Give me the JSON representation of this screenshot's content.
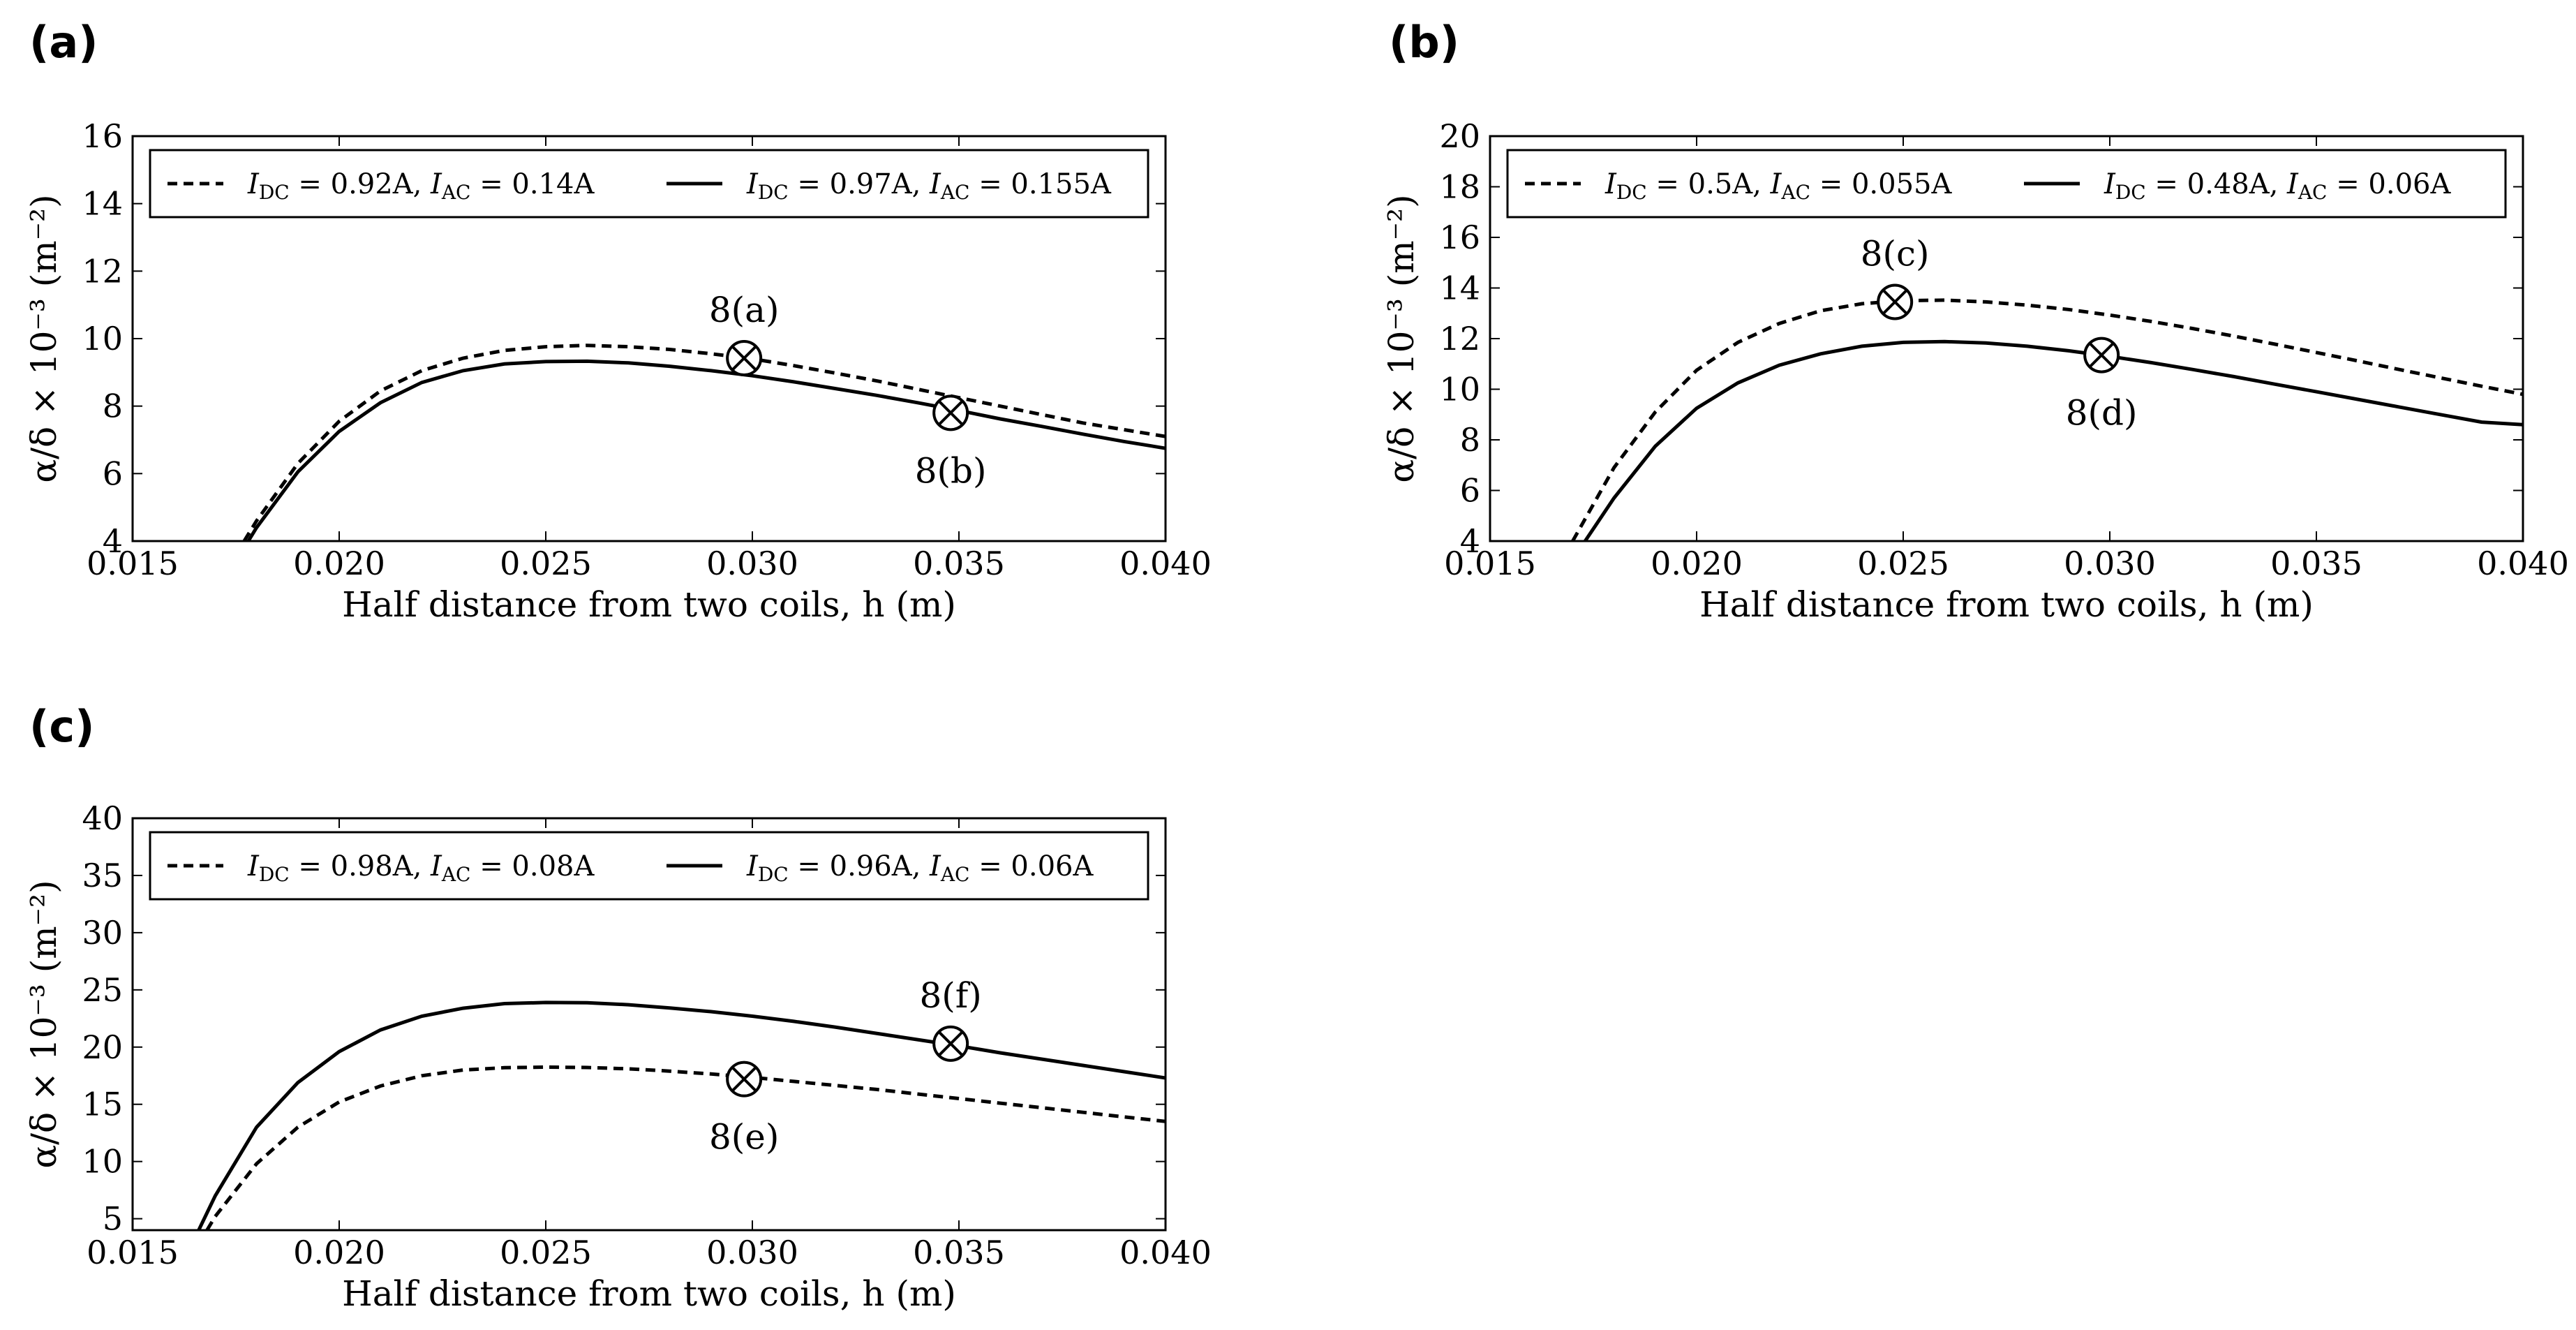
{
  "figure": {
    "panels": [
      {
        "label": "(a)"
      },
      {
        "label": "(b)"
      },
      {
        "label": "(c)"
      }
    ]
  },
  "chart_data": [
    {
      "panel": "(a)",
      "type": "line",
      "xlabel": "Half distance from two coils, h (m)",
      "ylabel": "α/δ × 10⁻³ (m⁻²)",
      "xlim": [
        0.015,
        0.04
      ],
      "ylim": [
        4,
        16
      ],
      "xticks": [
        0.015,
        0.02,
        0.025,
        0.03,
        0.035,
        0.04
      ],
      "xtick_labels": [
        "0.015",
        "0.020",
        "0.025",
        "0.030",
        "0.035",
        "0.040"
      ],
      "yticks": [
        4,
        6,
        8,
        10,
        12,
        14,
        16
      ],
      "ytick_labels": [
        "4",
        "6",
        "8",
        "10",
        "12",
        "14",
        "16"
      ],
      "legend_position": "top",
      "series": [
        {
          "name": "I_DC = 0.92A, I_AC = 0.14A",
          "label_parts": [
            "I",
            "DC",
            " = 0.92A, ",
            "I",
            "AC",
            " = 0.14A"
          ],
          "style": "dashed",
          "x": [
            0.0177,
            0.018,
            0.019,
            0.02,
            0.021,
            0.022,
            0.023,
            0.024,
            0.025,
            0.026,
            0.027,
            0.028,
            0.029,
            0.03,
            0.031,
            0.032,
            0.033,
            0.034,
            0.035,
            0.036,
            0.037,
            0.038,
            0.039,
            0.04
          ],
          "y": [
            4.0,
            4.6,
            6.3,
            7.55,
            8.45,
            9.05,
            9.42,
            9.65,
            9.76,
            9.8,
            9.76,
            9.68,
            9.55,
            9.4,
            9.2,
            8.98,
            8.75,
            8.5,
            8.25,
            8.0,
            7.75,
            7.5,
            7.3,
            7.1
          ]
        },
        {
          "name": "I_DC = 0.97A, I_AC = 0.155A",
          "label_parts": [
            "I",
            "DC",
            " = 0.97A, ",
            "I",
            "AC",
            " = 0.155A"
          ],
          "style": "solid",
          "x": [
            0.0178,
            0.018,
            0.019,
            0.02,
            0.021,
            0.022,
            0.023,
            0.024,
            0.025,
            0.026,
            0.027,
            0.028,
            0.029,
            0.03,
            0.031,
            0.032,
            0.033,
            0.034,
            0.035,
            0.036,
            0.037,
            0.038,
            0.039,
            0.04
          ],
          "y": [
            4.0,
            4.4,
            6.05,
            7.25,
            8.1,
            8.7,
            9.05,
            9.25,
            9.32,
            9.33,
            9.28,
            9.18,
            9.05,
            8.9,
            8.72,
            8.52,
            8.32,
            8.1,
            7.87,
            7.62,
            7.4,
            7.17,
            6.95,
            6.75
          ]
        }
      ],
      "markers": [
        {
          "x": 0.0298,
          "y": 9.42,
          "label": "8(a)",
          "label_position": "above"
        },
        {
          "x": 0.0348,
          "y": 7.8,
          "label": "8(b)",
          "label_position": "below"
        }
      ]
    },
    {
      "panel": "(b)",
      "type": "line",
      "xlabel": "Half distance from two coils, h (m)",
      "ylabel": "α/δ × 10⁻³ (m⁻²)",
      "xlim": [
        0.015,
        0.04
      ],
      "ylim": [
        4,
        20
      ],
      "xticks": [
        0.015,
        0.02,
        0.025,
        0.03,
        0.035,
        0.04
      ],
      "xtick_labels": [
        "0.015",
        "0.020",
        "0.025",
        "0.030",
        "0.035",
        "0.040"
      ],
      "yticks": [
        4,
        6,
        8,
        10,
        12,
        14,
        16,
        18,
        20
      ],
      "ytick_labels": [
        "4",
        "6",
        "8",
        "10",
        "12",
        "14",
        "16",
        "18",
        "20"
      ],
      "legend_position": "top",
      "series": [
        {
          "name": "I_DC = 0.5A, I_AC = 0.055A",
          "label_parts": [
            "I",
            "DC",
            " = 0.5A, ",
            "I",
            "AC",
            " = 0.055A"
          ],
          "style": "dashed",
          "x": [
            0.017,
            0.018,
            0.019,
            0.02,
            0.021,
            0.022,
            0.023,
            0.024,
            0.025,
            0.026,
            0.027,
            0.028,
            0.029,
            0.03,
            0.031,
            0.032,
            0.033,
            0.034,
            0.035,
            0.036,
            0.037,
            0.038,
            0.039,
            0.04
          ],
          "y": [
            4.0,
            6.9,
            9.1,
            10.75,
            11.85,
            12.6,
            13.1,
            13.38,
            13.5,
            13.52,
            13.45,
            13.32,
            13.15,
            12.93,
            12.68,
            12.4,
            12.1,
            11.78,
            11.45,
            11.12,
            10.78,
            10.45,
            10.12,
            9.8
          ]
        },
        {
          "name": "I_DC = 0.48A, I_AC = 0.06A",
          "label_parts": [
            "I",
            "DC",
            " = 0.48A, ",
            "I",
            "AC",
            " = 0.06A"
          ],
          "style": "solid",
          "x": [
            0.0173,
            0.018,
            0.019,
            0.02,
            0.021,
            0.022,
            0.023,
            0.024,
            0.025,
            0.026,
            0.027,
            0.028,
            0.029,
            0.03,
            0.031,
            0.032,
            0.033,
            0.034,
            0.035,
            0.036,
            0.037,
            0.038,
            0.039,
            0.04
          ],
          "y": [
            4.0,
            5.7,
            7.75,
            9.25,
            10.25,
            10.95,
            11.4,
            11.7,
            11.85,
            11.88,
            11.83,
            11.7,
            11.52,
            11.3,
            11.05,
            10.78,
            10.5,
            10.2,
            9.9,
            9.6,
            9.3,
            9.0,
            8.7,
            8.6
          ]
        }
      ],
      "markers": [
        {
          "x": 0.0248,
          "y": 13.45,
          "label": "8(c)",
          "label_position": "above"
        },
        {
          "x": 0.0298,
          "y": 11.35,
          "label": "8(d)",
          "label_position": "below"
        }
      ]
    },
    {
      "panel": "(c)",
      "type": "line",
      "xlabel": "Half distance from two coils, h (m)",
      "ylabel": "α/δ × 10⁻³ (m⁻²)",
      "xlim": [
        0.015,
        0.04
      ],
      "ylim": [
        4,
        40
      ],
      "xticks": [
        0.015,
        0.02,
        0.025,
        0.03,
        0.035,
        0.04
      ],
      "xtick_labels": [
        "0.015",
        "0.020",
        "0.025",
        "0.030",
        "0.035",
        "0.040"
      ],
      "yticks": [
        5,
        10,
        15,
        20,
        25,
        30,
        35,
        40
      ],
      "ytick_labels": [
        "5",
        "10",
        "15",
        "20",
        "25",
        "30",
        "35",
        "40"
      ],
      "legend_position": "top",
      "series": [
        {
          "name": "I_DC = 0.98A, I_AC = 0.08A",
          "label_parts": [
            "I",
            "DC",
            " = 0.98A, ",
            "I",
            "AC",
            " = 0.08A"
          ],
          "style": "dashed",
          "x": [
            0.0168,
            0.017,
            0.018,
            0.019,
            0.02,
            0.021,
            0.022,
            0.023,
            0.024,
            0.025,
            0.026,
            0.027,
            0.028,
            0.029,
            0.03,
            0.031,
            0.032,
            0.033,
            0.034,
            0.035,
            0.036,
            0.037,
            0.038,
            0.039,
            0.04
          ],
          "y": [
            4.0,
            5.2,
            9.8,
            13.0,
            15.2,
            16.6,
            17.5,
            18.0,
            18.2,
            18.25,
            18.22,
            18.1,
            17.9,
            17.65,
            17.35,
            17.0,
            16.65,
            16.3,
            15.9,
            15.5,
            15.1,
            14.7,
            14.3,
            13.9,
            13.5
          ]
        },
        {
          "name": "I_DC = 0.96A, I_AC = 0.06A",
          "label_parts": [
            "I",
            "DC",
            " = 0.96A, ",
            "I",
            "AC",
            " = 0.06A"
          ],
          "style": "solid",
          "x": [
            0.0166,
            0.017,
            0.018,
            0.019,
            0.02,
            0.021,
            0.022,
            0.023,
            0.024,
            0.025,
            0.026,
            0.027,
            0.028,
            0.029,
            0.03,
            0.031,
            0.032,
            0.033,
            0.034,
            0.035,
            0.036,
            0.037,
            0.038,
            0.039,
            0.04
          ],
          "y": [
            4.0,
            7.0,
            13.0,
            16.9,
            19.6,
            21.5,
            22.7,
            23.4,
            23.8,
            23.9,
            23.88,
            23.7,
            23.42,
            23.1,
            22.7,
            22.25,
            21.75,
            21.2,
            20.65,
            20.1,
            19.5,
            18.95,
            18.4,
            17.85,
            17.3
          ]
        }
      ],
      "markers": [
        {
          "x": 0.0298,
          "y": 17.2,
          "label": "8(e)",
          "label_position": "below"
        },
        {
          "x": 0.0348,
          "y": 20.3,
          "label": "8(f)",
          "label_position": "above"
        }
      ]
    }
  ]
}
